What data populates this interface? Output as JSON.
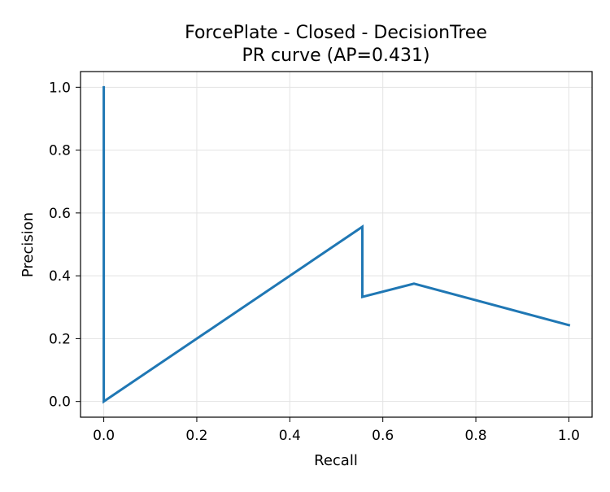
{
  "chart_data": {
    "type": "line",
    "title": "ForcePlate - Closed - DecisionTree",
    "subtitle": "PR curve (AP=0.431)",
    "xlabel": "Recall",
    "ylabel": "Precision",
    "xlim": [
      -0.05,
      1.05
    ],
    "ylim": [
      -0.05,
      1.05
    ],
    "xticks": [
      0.0,
      0.2,
      0.4,
      0.6,
      0.8,
      1.0
    ],
    "yticks": [
      0.0,
      0.2,
      0.4,
      0.6,
      0.8,
      1.0
    ],
    "xtick_labels": [
      "0.0",
      "0.2",
      "0.4",
      "0.6",
      "0.8",
      "1.0"
    ],
    "ytick_labels": [
      "0.0",
      "0.2",
      "0.4",
      "0.6",
      "0.8",
      "1.0"
    ],
    "grid": true,
    "series": [
      {
        "color": "#1f77b4",
        "x": [
          0.0,
          0.0,
          0.556,
          0.556,
          0.667,
          1.0
        ],
        "y": [
          1.0,
          0.0,
          0.556,
          0.333,
          0.375,
          0.243
        ]
      }
    ]
  }
}
